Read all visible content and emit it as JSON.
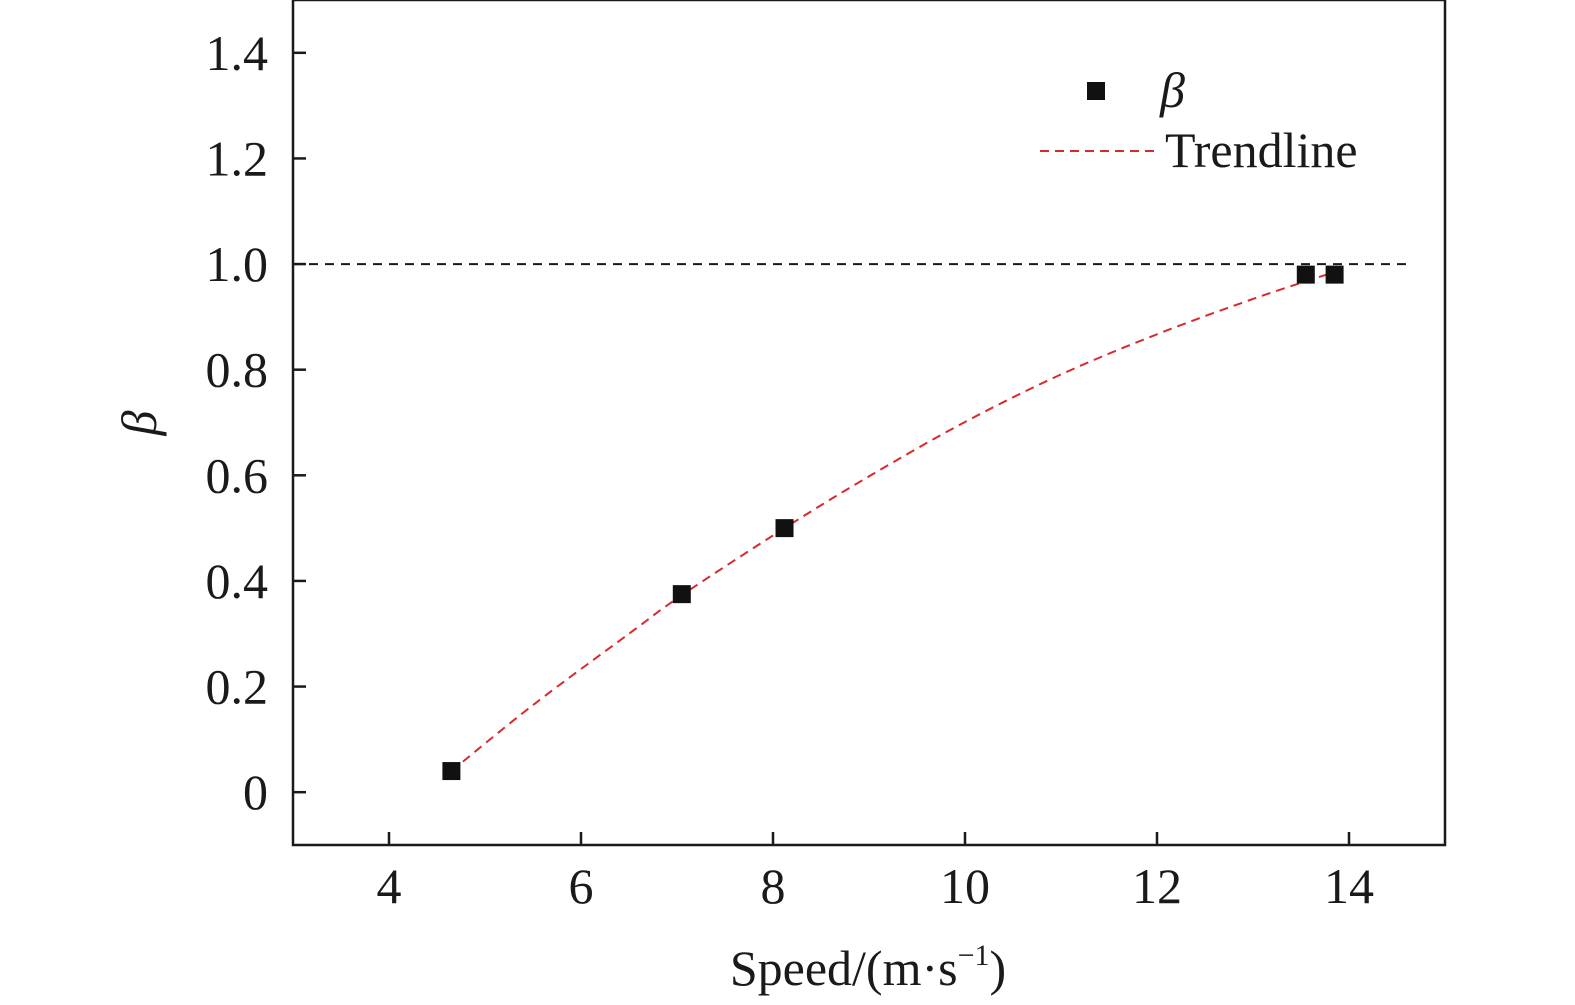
{
  "chart_data": {
    "type": "scatter",
    "xlabel": "Speed/(m·s",
    "xlabel_superscript": "−1",
    "xlabel_close": ")",
    "ylabel": "β",
    "xlim": [
      3,
      15
    ],
    "ylim": [
      -0.1,
      1.5
    ],
    "xticks": [
      4,
      6,
      8,
      10,
      12,
      14
    ],
    "yticks": [
      0,
      0.2,
      0.4,
      0.6,
      0.8,
      1.0,
      1.2,
      1.4
    ],
    "xtick_labels": [
      "4",
      "6",
      "8",
      "10",
      "12",
      "14"
    ],
    "ytick_labels": [
      "0",
      "0.2",
      "0.4",
      "0.6",
      "0.8",
      "1.0",
      "1.2",
      "1.4"
    ],
    "grid": false,
    "legend_position": "top-right",
    "reference_line": {
      "y": 1.0,
      "style": "dashed",
      "color": "#1a1a1a"
    },
    "series": [
      {
        "name": "β",
        "kind": "scatter",
        "marker": "square",
        "color": "#111111",
        "x": [
          4.65,
          7.05,
          8.12,
          13.55,
          13.85
        ],
        "y": [
          0.04,
          0.375,
          0.5,
          0.98,
          0.98
        ]
      },
      {
        "name": "Trendline",
        "kind": "line",
        "style": "dashed",
        "color": "#d9292b",
        "x": [
          4.65,
          5.5,
          6.5,
          7.05,
          8.12,
          9.0,
          10.0,
          11.0,
          12.0,
          13.0,
          13.85
        ],
        "y": [
          0.04,
          0.165,
          0.3,
          0.373,
          0.5,
          0.598,
          0.701,
          0.791,
          0.867,
          0.934,
          0.985
        ]
      }
    ]
  }
}
